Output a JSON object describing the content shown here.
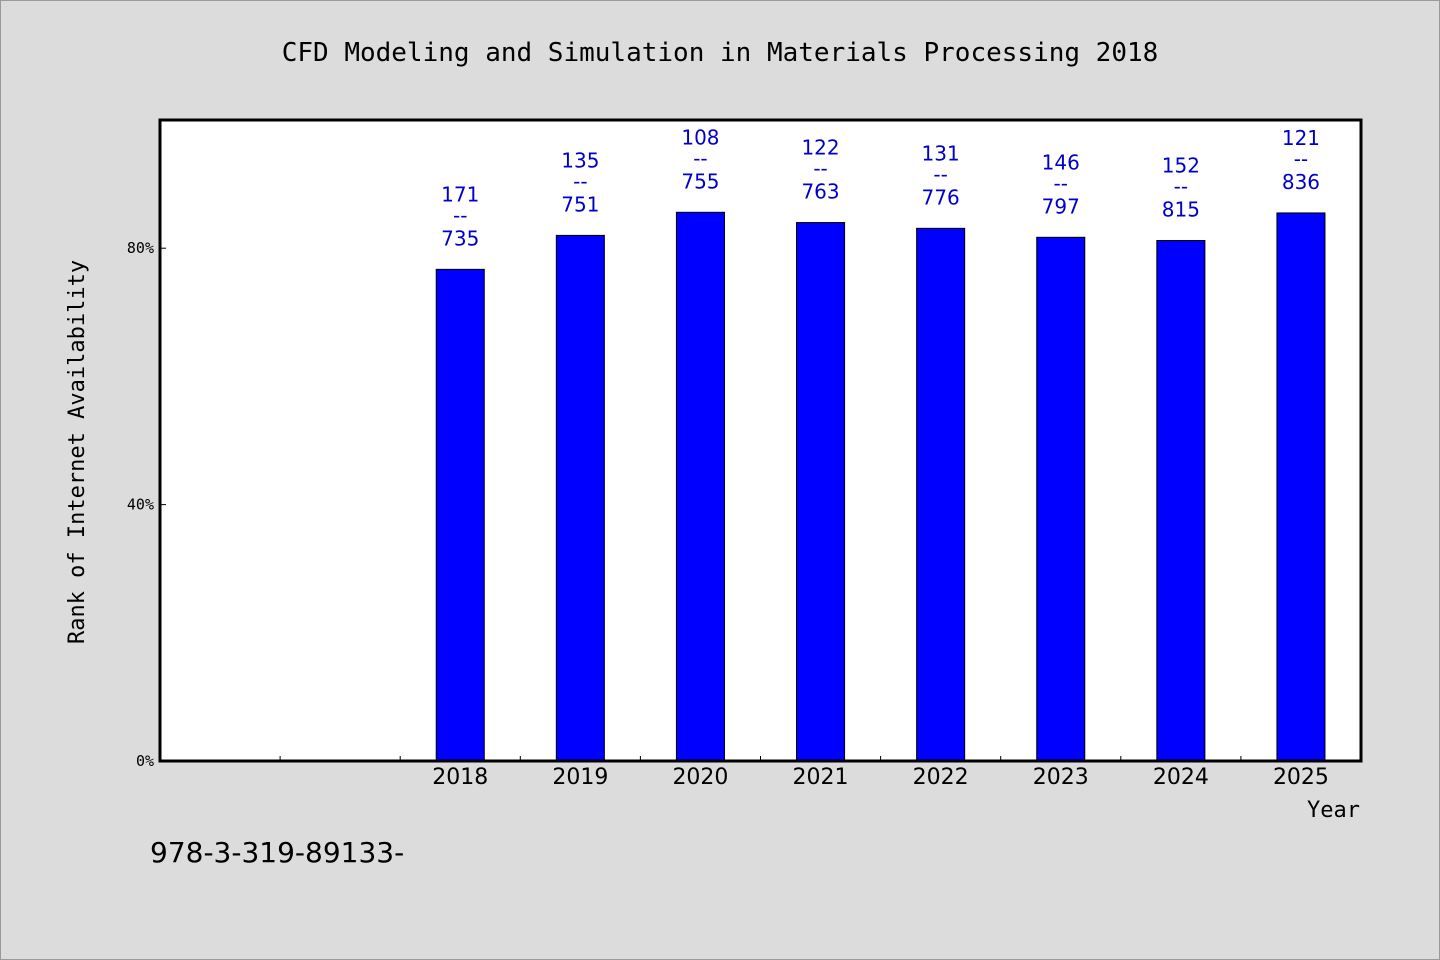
{
  "chart_data": {
    "type": "bar",
    "title": "CFD Modeling and Simulation in Materials Processing 2018",
    "xlabel": "Year",
    "ylabel": "Rank of Internet Availability",
    "categories": [
      "2018",
      "2019",
      "2020",
      "2021",
      "2022",
      "2023",
      "2024",
      "2025"
    ],
    "values": [
      76.7,
      82.0,
      85.6,
      84.0,
      83.1,
      81.7,
      81.2,
      85.5
    ],
    "labels_top": [
      "171",
      "135",
      "108",
      "122",
      "131",
      "146",
      "152",
      "121"
    ],
    "labels_sep": "--",
    "labels_bottom": [
      "735",
      "751",
      "755",
      "763",
      "776",
      "797",
      "815",
      "836"
    ],
    "ylim": [
      0,
      100
    ],
    "yticks": [
      {
        "value": 0,
        "label": "0%"
      },
      {
        "value": 40,
        "label": "40%"
      },
      {
        "value": 80,
        "label": "80%"
      }
    ],
    "empty_slots_before": 2,
    "bar_color": "#0000ff",
    "label_color": "#0000cc",
    "grid": false,
    "legend": "none"
  },
  "footer_text": "978-3-319-89133-"
}
